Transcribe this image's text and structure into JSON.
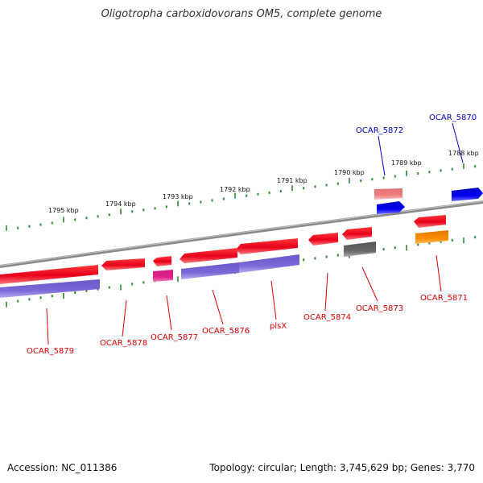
{
  "title": "Oligotropha carboxidovorans OM5, complete genome",
  "footer": {
    "accession": "Accession: NC_011386",
    "summary": "Topology: circular; Length: 3,745,629 bp; Genes: 3,770"
  },
  "colors": {
    "backbone": "#808080",
    "tick": "#2e8b2e",
    "cds_forward": "#e8001b",
    "cds_reverse": "#e8001b",
    "cog_purple": "#7b68d8",
    "cog_magenta": "#e0208c",
    "cog_gray": "#666666",
    "cog_pink": "#f08080",
    "cog_blue": "#0000ee",
    "cog_orange": "#ff8c00",
    "label_red": "#dd0000",
    "label_blue": "#0000cc"
  },
  "scale": {
    "unit": "kbp",
    "labels": [
      "1795 kbp",
      "1794 kbp",
      "1793 kbp",
      "1792 kbp",
      "1791 kbp",
      "1790 kbp",
      "1789 kbp",
      "1788 kbp"
    ]
  },
  "genes": [
    {
      "label": "OCAR_5879",
      "strand": "reverse",
      "color": "label_red"
    },
    {
      "label": "OCAR_5878",
      "strand": "reverse",
      "color": "label_red"
    },
    {
      "label": "OCAR_5877",
      "strand": "reverse",
      "color": "label_red"
    },
    {
      "label": "OCAR_5876",
      "strand": "forward",
      "color": "label_red"
    },
    {
      "label": "plsX",
      "strand": "forward",
      "color": "label_red"
    },
    {
      "label": "OCAR_5874",
      "strand": "reverse",
      "color": "label_red"
    },
    {
      "label": "OCAR_5873",
      "strand": "reverse",
      "color": "label_red"
    },
    {
      "label": "OCAR_5872",
      "strand": "forward",
      "color": "label_blue"
    },
    {
      "label": "OCAR_5871",
      "strand": "reverse",
      "color": "label_red"
    },
    {
      "label": "OCAR_5870",
      "strand": "forward",
      "color": "label_blue"
    }
  ]
}
